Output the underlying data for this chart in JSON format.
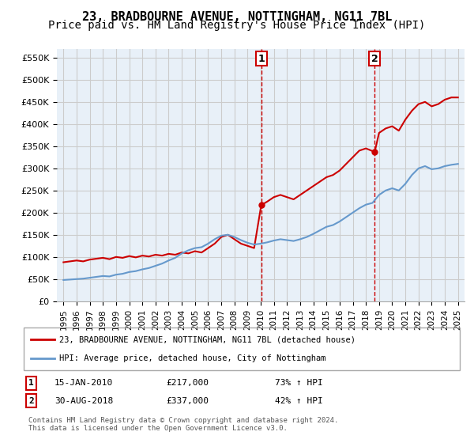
{
  "title": "23, BRADBOURNE AVENUE, NOTTINGHAM, NG11 7BL",
  "subtitle": "Price paid vs. HM Land Registry's House Price Index (HPI)",
  "title_fontsize": 11,
  "subtitle_fontsize": 10,
  "red_line_label": "23, BRADBOURNE AVENUE, NOTTINGHAM, NG11 7BL (detached house)",
  "blue_line_label": "HPI: Average price, detached house, City of Nottingham",
  "footer": "Contains HM Land Registry data © Crown copyright and database right 2024.\nThis data is licensed under the Open Government Licence v3.0.",
  "marker1_date": 2010.04,
  "marker1_label": "15-JAN-2010",
  "marker1_price": "£217,000",
  "marker1_hpi": "73% ↑ HPI",
  "marker2_date": 2018.67,
  "marker2_label": "30-AUG-2018",
  "marker2_price": "£337,000",
  "marker2_hpi": "42% ↑ HPI",
  "ylim": [
    0,
    570000
  ],
  "xlim": [
    1994.5,
    2025.5
  ],
  "yticks": [
    0,
    50000,
    100000,
    150000,
    200000,
    250000,
    300000,
    350000,
    400000,
    450000,
    500000,
    550000
  ],
  "ytick_labels": [
    "£0",
    "£50K",
    "£100K",
    "£150K",
    "£200K",
    "£250K",
    "£300K",
    "£350K",
    "£400K",
    "£450K",
    "£500K",
    "£550K"
  ],
  "xticks": [
    1995,
    1996,
    1997,
    1998,
    1999,
    2000,
    2001,
    2002,
    2003,
    2004,
    2005,
    2006,
    2007,
    2008,
    2009,
    2010,
    2011,
    2012,
    2013,
    2014,
    2015,
    2016,
    2017,
    2018,
    2019,
    2020,
    2021,
    2022,
    2023,
    2024,
    2025
  ],
  "red_color": "#cc0000",
  "blue_color": "#6699cc",
  "grid_color": "#cccccc",
  "background_color": "#e8f0f8",
  "red_x": [
    1995.0,
    1995.5,
    1996.0,
    1996.5,
    1997.0,
    1997.5,
    1998.0,
    1998.5,
    1999.0,
    1999.5,
    2000.0,
    2000.5,
    2001.0,
    2001.5,
    2002.0,
    2002.5,
    2003.0,
    2003.5,
    2004.0,
    2004.5,
    2005.0,
    2005.5,
    2006.0,
    2006.5,
    2007.0,
    2007.5,
    2008.0,
    2008.5,
    2009.0,
    2009.5,
    2010.04,
    2010.5,
    2011.0,
    2011.5,
    2012.0,
    2012.5,
    2013.0,
    2013.5,
    2014.0,
    2014.5,
    2015.0,
    2015.5,
    2016.0,
    2016.5,
    2017.0,
    2017.5,
    2018.0,
    2018.67,
    2019.0,
    2019.5,
    2020.0,
    2020.5,
    2021.0,
    2021.5,
    2022.0,
    2022.5,
    2023.0,
    2023.5,
    2024.0,
    2024.5,
    2025.0
  ],
  "red_y": [
    88000,
    90000,
    92000,
    90000,
    94000,
    96000,
    98000,
    95000,
    100000,
    98000,
    102000,
    99000,
    103000,
    101000,
    105000,
    103000,
    107000,
    105000,
    110000,
    108000,
    113000,
    110000,
    120000,
    130000,
    145000,
    150000,
    140000,
    130000,
    125000,
    120000,
    217000,
    225000,
    235000,
    240000,
    235000,
    230000,
    240000,
    250000,
    260000,
    270000,
    280000,
    285000,
    295000,
    310000,
    325000,
    340000,
    345000,
    337000,
    380000,
    390000,
    395000,
    385000,
    410000,
    430000,
    445000,
    450000,
    440000,
    445000,
    455000,
    460000,
    460000
  ],
  "blue_x": [
    1995.0,
    1995.5,
    1996.0,
    1996.5,
    1997.0,
    1997.5,
    1998.0,
    1998.5,
    1999.0,
    1999.5,
    2000.0,
    2000.5,
    2001.0,
    2001.5,
    2002.0,
    2002.5,
    2003.0,
    2003.5,
    2004.0,
    2004.5,
    2005.0,
    2005.5,
    2006.0,
    2006.5,
    2007.0,
    2007.5,
    2008.0,
    2008.5,
    2009.0,
    2009.5,
    2010.0,
    2010.5,
    2011.0,
    2011.5,
    2012.0,
    2012.5,
    2013.0,
    2013.5,
    2014.0,
    2014.5,
    2015.0,
    2015.5,
    2016.0,
    2016.5,
    2017.0,
    2017.5,
    2018.0,
    2018.5,
    2019.0,
    2019.5,
    2020.0,
    2020.5,
    2021.0,
    2021.5,
    2022.0,
    2022.5,
    2023.0,
    2023.5,
    2024.0,
    2024.5,
    2025.0
  ],
  "blue_y": [
    48000,
    49000,
    50000,
    51000,
    53000,
    55000,
    57000,
    56000,
    60000,
    62000,
    66000,
    68000,
    72000,
    75000,
    80000,
    85000,
    92000,
    98000,
    108000,
    115000,
    120000,
    122000,
    130000,
    140000,
    148000,
    150000,
    145000,
    138000,
    132000,
    128000,
    130000,
    133000,
    137000,
    140000,
    138000,
    136000,
    140000,
    145000,
    152000,
    160000,
    168000,
    172000,
    180000,
    190000,
    200000,
    210000,
    218000,
    222000,
    240000,
    250000,
    255000,
    250000,
    265000,
    285000,
    300000,
    305000,
    298000,
    300000,
    305000,
    308000,
    310000
  ]
}
